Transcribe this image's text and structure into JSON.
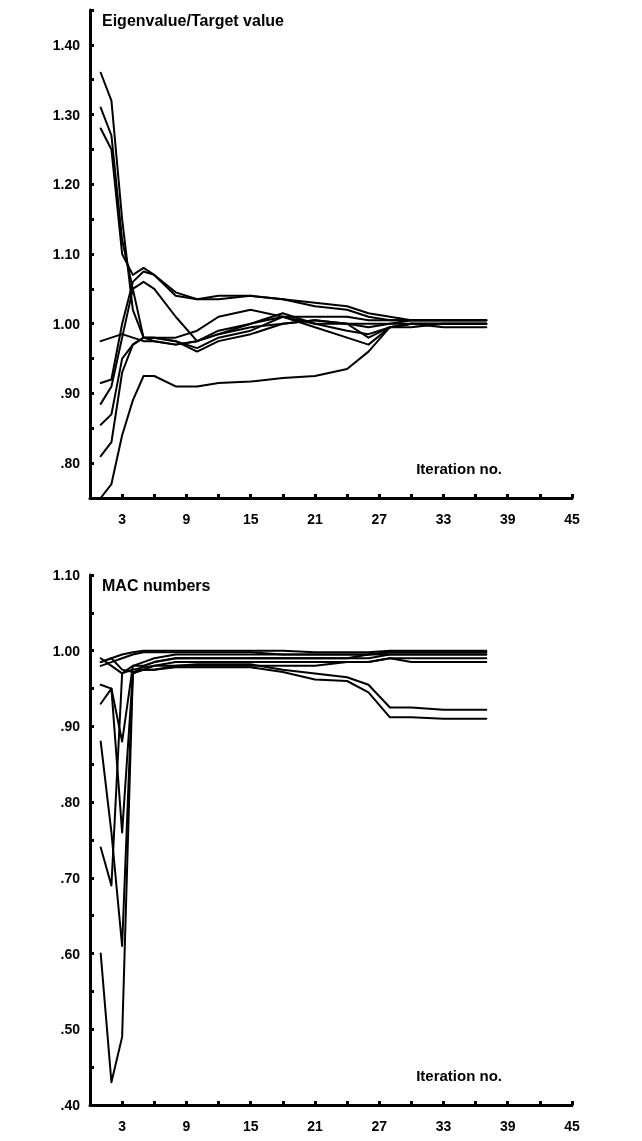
{
  "chart_data": [
    {
      "type": "line",
      "ylabel": "Eigenvalue/Target value",
      "xlabel": "Iteration no.",
      "xlim": [
        0,
        45
      ],
      "ylim": [
        0.75,
        1.45
      ],
      "xticks": [
        {
          "value": 0,
          "label": null
        },
        3,
        {
          "value": 6,
          "label": null
        },
        9,
        {
          "value": 12,
          "label": null
        },
        15,
        {
          "value": 18,
          "label": null
        },
        21,
        {
          "value": 24,
          "label": null
        },
        27,
        {
          "value": 30,
          "label": null
        },
        33,
        {
          "value": 36,
          "label": null
        },
        39,
        {
          "value": 42,
          "label": null
        },
        45
      ],
      "yticks": [
        {
          "value": 0.75,
          "label": null
        },
        {
          "value": 0.8,
          "label": ".80"
        },
        {
          "value": 0.85,
          "label": null
        },
        {
          "value": 0.9,
          "label": ".90"
        },
        {
          "value": 0.95,
          "label": null
        },
        {
          "value": 1.0,
          "label": "1.00"
        },
        {
          "value": 1.05,
          "label": null
        },
        {
          "value": 1.1,
          "label": "1.10"
        },
        {
          "value": 1.15,
          "label": null
        },
        {
          "value": 1.2,
          "label": "1.20"
        },
        {
          "value": 1.25,
          "label": null
        },
        {
          "value": 1.3,
          "label": "1.30"
        },
        {
          "value": 1.35,
          "label": null
        },
        {
          "value": 1.4,
          "label": "1.40"
        },
        {
          "value": 1.45,
          "label": null
        }
      ],
      "x": [
        1,
        2,
        3,
        4,
        5,
        6,
        8,
        10,
        12,
        15,
        18,
        21,
        24,
        26,
        28,
        30,
        33,
        37
      ],
      "marker": "none",
      "line_style": "solid",
      "series": [
        {
          "color": "#000000",
          "values": [
            1.36,
            1.32,
            1.15,
            1.02,
            0.98,
            0.975,
            0.97,
            0.975,
            0.985,
            0.995,
            1.0,
            1.005,
            1.0,
            0.995,
            1.0,
            1.005,
            1.005,
            1.005
          ]
        },
        {
          "color": "#000000",
          "values": [
            1.31,
            1.27,
            1.12,
            1.05,
            1.06,
            1.05,
            1.01,
            0.975,
            0.99,
            1.0,
            1.015,
            1.0,
            0.99,
            0.985,
            0.995,
            1.0,
            1.0,
            1.0
          ]
        },
        {
          "color": "#000000",
          "values": [
            1.28,
            1.25,
            1.1,
            1.07,
            1.08,
            1.07,
            1.04,
            1.035,
            1.04,
            1.04,
            1.035,
            1.03,
            1.025,
            1.015,
            1.01,
            1.005,
            1.005,
            1.005
          ]
        },
        {
          "color": "#000000",
          "values": [
            0.75,
            0.77,
            0.84,
            0.89,
            0.925,
            0.925,
            0.91,
            0.91,
            0.915,
            0.917,
            0.922,
            0.925,
            0.935,
            0.96,
            0.995,
            1.0,
            1.0,
            1.0
          ]
        },
        {
          "color": "#000000",
          "values": [
            0.975,
            0.98,
            0.985,
            0.98,
            0.975,
            0.975,
            0.97,
            0.975,
            0.985,
            1.0,
            1.01,
            1.01,
            1.01,
            1.005,
            1.005,
            1.005,
            1.005,
            1.005
          ]
        },
        {
          "color": "#000000",
          "values": [
            0.915,
            0.92,
            1.0,
            1.06,
            1.075,
            1.07,
            1.045,
            1.035,
            1.035,
            1.04,
            1.035,
            1.025,
            1.02,
            1.01,
            1.005,
            1.005,
            1.005,
            1.005
          ]
        },
        {
          "color": "#000000",
          "values": [
            0.885,
            0.91,
            0.98,
            1.05,
            0.98,
            0.98,
            0.98,
            0.99,
            1.01,
            1.02,
            1.01,
            1.0,
            1.0,
            0.98,
            0.995,
            1.0,
            1.0,
            1.0
          ]
        },
        {
          "color": "#000000",
          "values": [
            0.855,
            0.87,
            0.95,
            0.97,
            0.98,
            0.98,
            0.975,
            0.965,
            0.98,
            0.99,
            1.01,
            0.995,
            0.98,
            0.97,
            0.995,
            0.995,
            1.0,
            1.0
          ]
        },
        {
          "color": "#000000",
          "values": [
            0.81,
            0.83,
            0.93,
            0.97,
            0.98,
            0.98,
            0.975,
            0.96,
            0.975,
            0.985,
            1.0,
            1.005,
            1.0,
            1.0,
            1.0,
            1.0,
            0.995,
            0.995
          ]
        }
      ]
    },
    {
      "type": "line",
      "ylabel": "MAC numbers",
      "xlabel": "Iteration no.",
      "xlim": [
        0,
        45
      ],
      "ylim": [
        0.4,
        1.1
      ],
      "xticks": [
        {
          "value": 0,
          "label": null
        },
        3,
        {
          "value": 6,
          "label": null
        },
        9,
        {
          "value": 12,
          "label": null
        },
        15,
        {
          "value": 18,
          "label": null
        },
        21,
        {
          "value": 24,
          "label": null
        },
        27,
        {
          "value": 30,
          "label": null
        },
        33,
        {
          "value": 36,
          "label": null
        },
        39,
        {
          "value": 42,
          "label": null
        },
        45
      ],
      "yticks": [
        {
          "value": 0.4,
          "label": ".40"
        },
        {
          "value": 0.45,
          "label": null
        },
        {
          "value": 0.5,
          "label": ".50"
        },
        {
          "value": 0.55,
          "label": null
        },
        {
          "value": 0.6,
          "label": ".60"
        },
        {
          "value": 0.65,
          "label": null
        },
        {
          "value": 0.7,
          "label": ".70"
        },
        {
          "value": 0.75,
          "label": null
        },
        {
          "value": 0.8,
          "label": ".80"
        },
        {
          "value": 0.85,
          "label": null
        },
        {
          "value": 0.9,
          "label": ".90"
        },
        {
          "value": 0.95,
          "label": null
        },
        {
          "value": 1.0,
          "label": "1.00"
        },
        {
          "value": 1.05,
          "label": null
        },
        {
          "value": 1.1,
          "label": "1.10"
        }
      ],
      "x": [
        1,
        2,
        3,
        4,
        5,
        6,
        8,
        10,
        12,
        15,
        18,
        21,
        24,
        26,
        28,
        30,
        33,
        37
      ],
      "marker": "none",
      "line_style": "solid",
      "series": [
        {
          "color": "#000000",
          "values": [
            0.6,
            0.43,
            0.49,
            0.97,
            0.975,
            0.975,
            0.98,
            0.98,
            0.98,
            0.98,
            0.98,
            0.98,
            0.985,
            0.985,
            0.99,
            0.99,
            0.99,
            0.99
          ]
        },
        {
          "color": "#000000",
          "values": [
            0.74,
            0.69,
            0.97,
            0.98,
            0.98,
            0.985,
            0.99,
            0.99,
            0.99,
            0.99,
            0.99,
            0.99,
            0.99,
            0.99,
            0.995,
            0.995,
            0.995,
            0.995
          ]
        },
        {
          "color": "#000000",
          "values": [
            0.88,
            0.76,
            0.61,
            0.97,
            0.975,
            0.98,
            0.985,
            0.985,
            0.985,
            0.985,
            0.985,
            0.985,
            0.985,
            0.985,
            0.99,
            0.985,
            0.985,
            0.985
          ]
        },
        {
          "color": "#000000",
          "values": [
            0.93,
            0.95,
            0.76,
            0.97,
            0.98,
            0.985,
            0.99,
            0.99,
            0.99,
            0.99,
            0.99,
            0.99,
            0.99,
            0.995,
            0.995,
            0.995,
            0.995,
            0.995
          ]
        },
        {
          "color": "#000000",
          "values": [
            0.955,
            0.95,
            0.88,
            0.98,
            0.985,
            0.99,
            0.995,
            0.995,
            0.995,
            0.995,
            0.995,
            0.995,
            0.995,
            0.995,
            0.998,
            0.998,
            0.998,
            0.998
          ]
        },
        {
          "color": "#000000",
          "values": [
            0.985,
            0.99,
            0.995,
            0.998,
            1.0,
            1.0,
            1.0,
            1.0,
            1.0,
            1.0,
            1.0,
            0.998,
            0.998,
            0.998,
            1.0,
            1.0,
            1.0,
            1.0
          ]
        },
        {
          "color": "#000000",
          "values": [
            0.98,
            0.985,
            0.99,
            0.995,
            0.998,
            0.998,
            0.998,
            0.998,
            0.998,
            0.998,
            0.995,
            0.995,
            0.995,
            0.995,
            0.998,
            0.998,
            0.998,
            0.998
          ]
        },
        {
          "color": "#000000",
          "values": [
            0.99,
            0.98,
            0.97,
            0.975,
            0.978,
            0.98,
            0.98,
            0.982,
            0.982,
            0.982,
            0.975,
            0.97,
            0.965,
            0.955,
            0.925,
            0.925,
            0.922,
            0.922
          ]
        },
        {
          "color": "#000000",
          "values": [
            0.985,
            0.99,
            0.975,
            0.972,
            0.975,
            0.975,
            0.978,
            0.978,
            0.978,
            0.978,
            0.972,
            0.962,
            0.96,
            0.945,
            0.912,
            0.912,
            0.91,
            0.91
          ]
        }
      ]
    }
  ]
}
